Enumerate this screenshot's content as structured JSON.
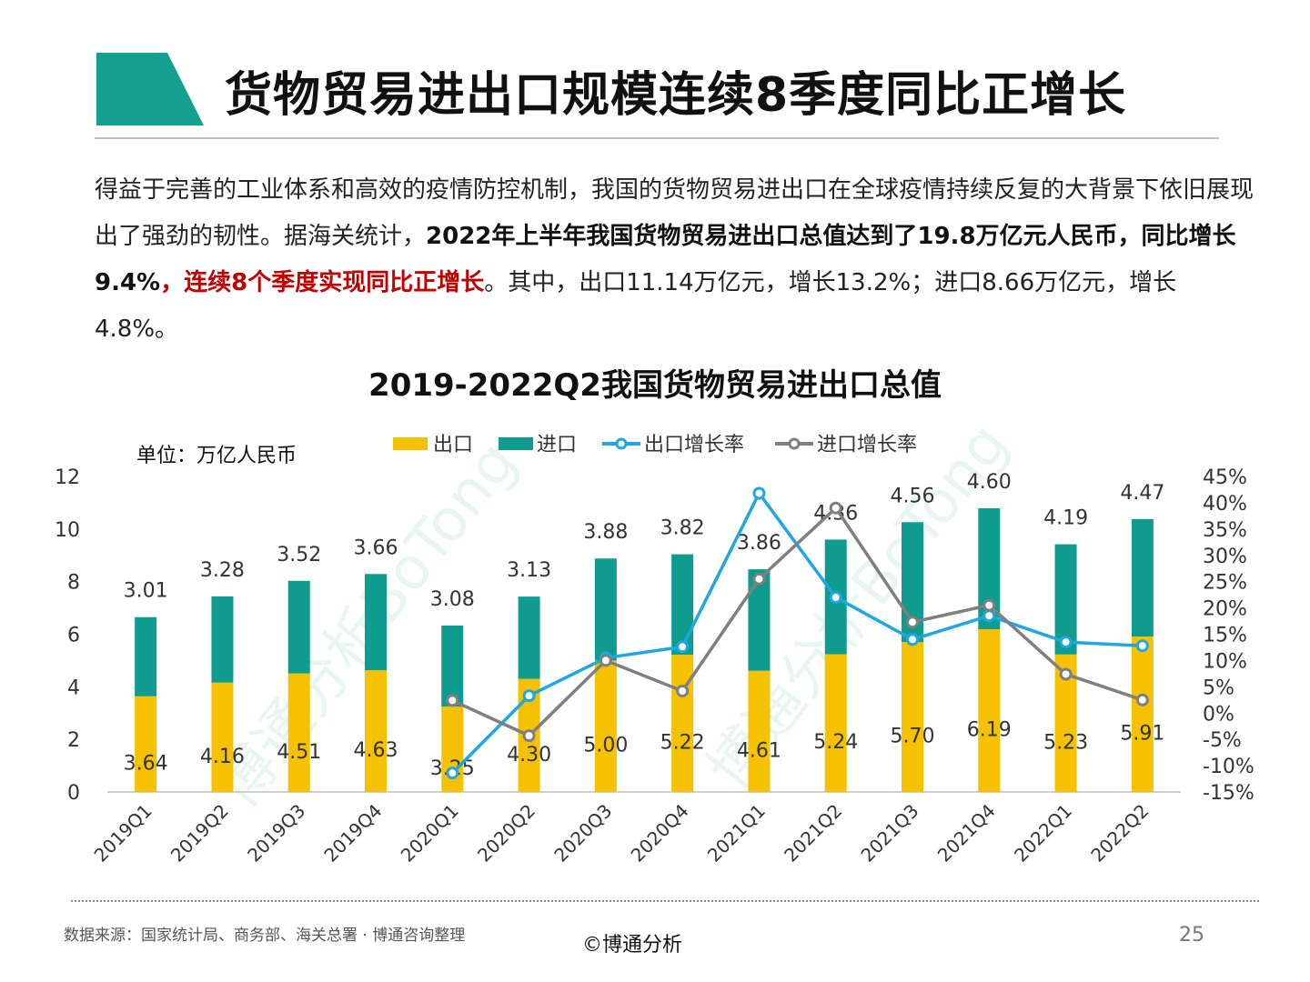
{
  "header": {
    "title": "货物贸易进出口规模连续8季度同比正增长",
    "accent_color": "#14a08e"
  },
  "intro": {
    "part1": "得益于完善的工业体系和高效的疫情防控机制，我国的货物贸易进出口在全球疫情持续反复的大背景下依旧展现出了强劲的韧性。据海关统计，",
    "bold": "2022年上半年我国货物贸易进出口总值达到了19.8万亿元人民币，同比增长9.4%",
    "red": "，连续8个季度实现同比正增长",
    "part2": "。其中，出口11.14万亿元，增长13.2%；进口8.66万亿元，增长4.8%。"
  },
  "chart_data": {
    "type": "bar",
    "title": "2019-2022Q2我国货物贸易进出口总值",
    "unit_label": "单位：万亿人民币",
    "categories": [
      "2019Q1",
      "2019Q2",
      "2019Q3",
      "2019Q4",
      "2020Q1",
      "2020Q2",
      "2020Q3",
      "2020Q4",
      "2021Q1",
      "2021Q2",
      "2021Q3",
      "2021Q4",
      "2022Q1",
      "2022Q2"
    ],
    "series": [
      {
        "name": "出口",
        "kind": "stacked-bar",
        "color": "#f5c100",
        "values": [
          3.64,
          4.16,
          4.51,
          4.63,
          3.25,
          4.3,
          5.0,
          5.22,
          4.61,
          5.24,
          5.7,
          6.19,
          5.23,
          5.91
        ]
      },
      {
        "name": "进口",
        "kind": "stacked-bar",
        "color": "#0f9b8e",
        "values": [
          3.01,
          3.28,
          3.52,
          3.66,
          3.08,
          3.13,
          3.88,
          3.82,
          3.86,
          4.36,
          4.56,
          4.6,
          4.19,
          4.47
        ]
      },
      {
        "name": "出口增长率",
        "kind": "line",
        "axis": "right",
        "color": "#1ea7e1",
        "values": [
          null,
          null,
          null,
          null,
          -11.4,
          3.3,
          10.5,
          12.6,
          41.8,
          22.0,
          14.0,
          18.5,
          13.5,
          12.8
        ]
      },
      {
        "name": "进口增长率",
        "kind": "line",
        "axis": "right",
        "color": "#7f7f7f",
        "values": [
          null,
          null,
          null,
          null,
          2.4,
          -4.3,
          10.0,
          4.2,
          25.5,
          39.0,
          17.3,
          20.5,
          7.4,
          2.5
        ]
      }
    ],
    "ylim": [
      0,
      12
    ],
    "yticks": [
      "0",
      "2",
      "4",
      "6",
      "8",
      "10",
      "12"
    ],
    "y2lim": [
      -15,
      45
    ],
    "y2ticks": [
      "-15%",
      "-10%",
      "-5%",
      "0%",
      "5%",
      "10%",
      "15%",
      "20%",
      "25%",
      "30%",
      "35%",
      "40%",
      "45%"
    ],
    "legend_position": "top",
    "watermark": "博通分析BoTong"
  },
  "footer": {
    "source": "数据来源：国家统计局、商务部、海关总署 · 博通咨询整理",
    "copyright": "©博通分析",
    "page_number": "25"
  }
}
